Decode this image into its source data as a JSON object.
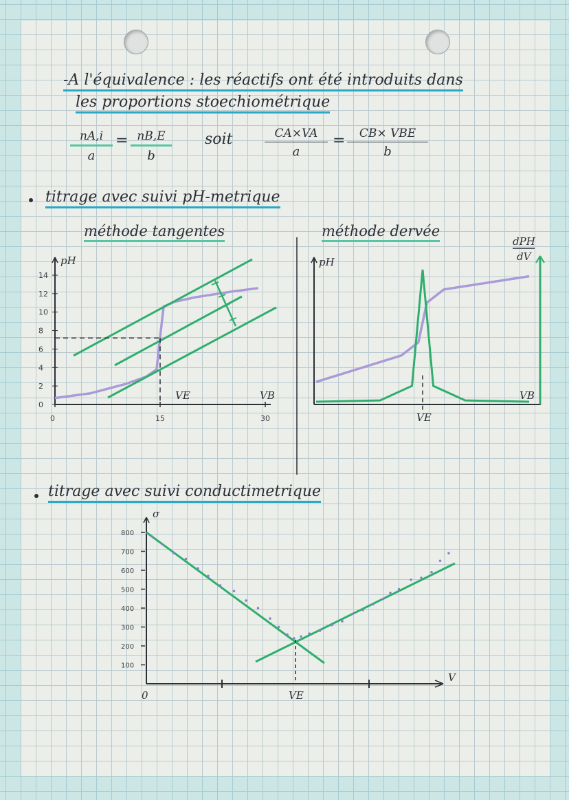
{
  "colors": {
    "ink": "#2b2f36",
    "green": "#2fae6e",
    "purple": "#a99ad8",
    "blue_highlight": "#2aa8c4",
    "grid": "#b9c9cf"
  },
  "equivalence": {
    "line1": "-A l'équivalence : les réactifs ont été introduits dans",
    "line2": "les proportions stoechiométrique",
    "frac1_num": "nA,i",
    "frac1_den": "a",
    "frac2_num": "nB,E",
    "frac2_den": "b",
    "soit": "soit",
    "frac3_num": "CA×VA",
    "frac3_den": "a",
    "frac4_num": "CB× VBE",
    "frac4_den": "b",
    "equals": "="
  },
  "ph_section": {
    "title": "titrage avec suivi pH-metrique",
    "tangent": {
      "subtitle": "méthode tangentes",
      "y_label": "pH",
      "x_label": "VB",
      "ve_label": "VE",
      "y_ticks": [
        "14",
        "12",
        "10",
        "8",
        "6",
        "4",
        "2",
        "0"
      ],
      "x_ticks": [
        "0",
        "15",
        "30"
      ]
    },
    "derivative": {
      "subtitle": "méthode dervée",
      "y_label": "pH",
      "y2_label_num": "dPH",
      "y2_label_den": "dV",
      "x_label": "VB",
      "ve_label": "VE"
    }
  },
  "conductimetric": {
    "title": "titrage avec suivi conductimetrique",
    "y_label": "σ",
    "x_label": "V",
    "ve_label": "VE",
    "origin": "0",
    "y_ticks": [
      "800",
      "700",
      "600",
      "500",
      "400",
      "300",
      "200",
      "100"
    ]
  },
  "chart_data": [
    {
      "type": "line",
      "title": "méthode tangentes",
      "ylabel": "pH",
      "xlabel": "VB",
      "xlim": [
        0,
        30
      ],
      "ylim": [
        0,
        14
      ],
      "x_ticks": [
        0,
        15,
        30
      ],
      "y_ticks": [
        0,
        2,
        4,
        6,
        8,
        10,
        12,
        14
      ],
      "series": [
        {
          "x": [
            0,
            5,
            10,
            13,
            14.5,
            15,
            15.5,
            17,
            20,
            25,
            29
          ],
          "y": [
            0.7,
            1.2,
            2.2,
            3.0,
            3.8,
            7.3,
            10.6,
            11.1,
            11.6,
            12.2,
            12.6
          ]
        }
      ],
      "equivalence": {
        "x": 15,
        "y": 7.2
      }
    },
    {
      "type": "line",
      "title": "méthode dervée",
      "ylabel": "pH",
      "xlabel": "VB",
      "series": [
        {
          "name": "pH",
          "x": [
            0,
            0.2,
            0.4,
            0.48,
            0.5,
            0.52,
            0.6,
            0.8,
            1.0
          ],
          "y": [
            0.15,
            0.25,
            0.35,
            0.45,
            0.6,
            0.75,
            0.85,
            0.9,
            0.95
          ]
        },
        {
          "name": "dPH/dV",
          "x": [
            0,
            0.3,
            0.45,
            0.5,
            0.55,
            0.7,
            1.0
          ],
          "y": [
            0.0,
            0.01,
            0.12,
            1.0,
            0.12,
            0.01,
            0.0
          ]
        }
      ]
    },
    {
      "type": "scatter",
      "title": "titrage avec suivi conductimetrique",
      "ylabel": "σ",
      "xlabel": "V",
      "ylim": [
        0,
        800
      ],
      "y_ticks": [
        100,
        200,
        300,
        400,
        500,
        600,
        700,
        800
      ],
      "series": [
        {
          "x": [
            0.3,
            0.9,
            1.6,
            2.3,
            3.0,
            3.6,
            4.3,
            5.1,
            5.8,
            6.5,
            7.2,
            7.7,
            8.2,
            8.6,
            9.0,
            9.5,
            10.1,
            10.8,
            11.4,
            12.0,
            12.6,
            13.2,
            13.8,
            14.2,
            14.7,
            15.4,
            16.0,
            16.6,
            17.1,
            17.6
          ],
          "y": [
            780,
            740,
            690,
            660,
            610,
            570,
            520,
            490,
            440,
            400,
            345,
            300,
            260,
            240,
            250,
            265,
            280,
            310,
            330,
            370,
            390,
            420,
            450,
            480,
            500,
            550,
            560,
            590,
            650,
            690
          ]
        }
      ],
      "equivalence_x": 9.5
    }
  ]
}
